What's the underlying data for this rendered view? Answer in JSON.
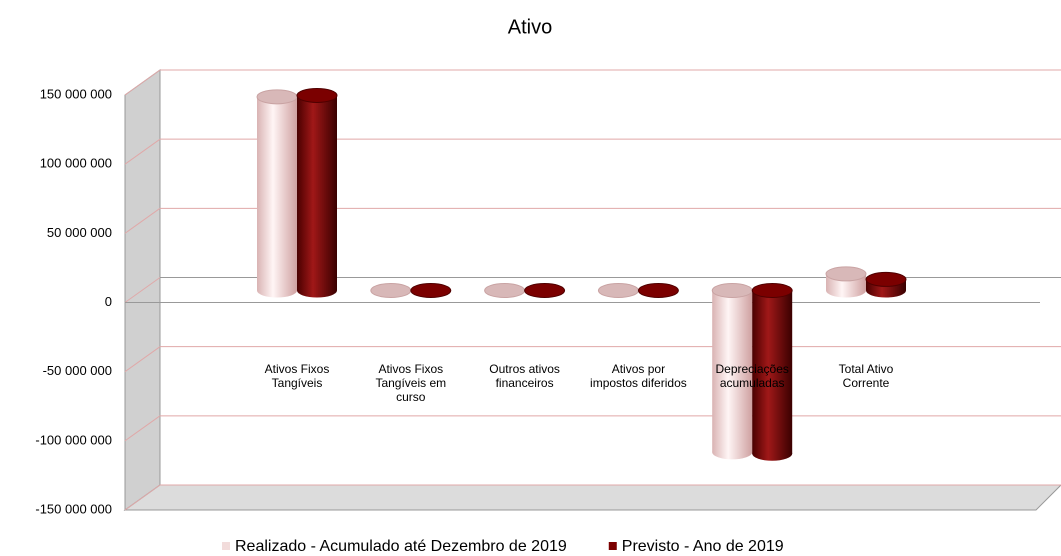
{
  "chart_data": {
    "type": "bar3d",
    "title": "Ativo",
    "categories": [
      "Ativos Fixos Tangíveis",
      "Ativos Fixos Tangíveis em curso",
      "Outros ativos financeiros",
      "Ativos por impostos diferidos",
      "Depreciações acumuladas",
      "Total Ativo Corrente"
    ],
    "series": [
      {
        "name": "Realizado - Acumulado até Dezembro de 2019",
        "color": "#f2dcdb",
        "values": [
          140000000,
          0,
          0,
          0,
          -117000000,
          12000000
        ]
      },
      {
        "name": "Previsto - Ano de 2019",
        "color": "#7b0000",
        "values": [
          141000000,
          0,
          0,
          0,
          -118000000,
          8000000
        ]
      }
    ],
    "ylim": [
      -150000000,
      150000000
    ],
    "yticks": [
      {
        "value": -150000000,
        "label": "-150 000 000"
      },
      {
        "value": -100000000,
        "label": "-100 000 000"
      },
      {
        "value": -50000000,
        "label": "-50 000 000"
      },
      0,
      {
        "value": 50000000,
        "label": "50 000 000"
      },
      {
        "value": 100000000,
        "label": "100 000 000"
      },
      {
        "value": 150000000,
        "label": "150 000 000"
      }
    ],
    "grid": true,
    "legend": "bottom"
  }
}
